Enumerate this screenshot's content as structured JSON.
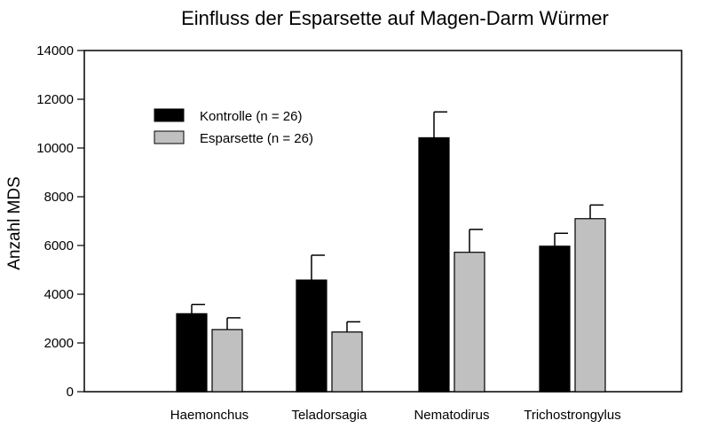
{
  "chart_data": {
    "type": "bar",
    "title": "Einfluss der Esparsette auf Magen-Darm Würmer",
    "xlabel": "",
    "ylabel": "Anzahl MDS",
    "ylim": [
      0,
      14000
    ],
    "yticks": [
      0,
      2000,
      4000,
      6000,
      8000,
      10000,
      12000,
      14000
    ],
    "categories": [
      "Haemonchus",
      "Teladorsagia",
      "Nematodirus",
      "Trichostrongylus"
    ],
    "series": [
      {
        "name": "Kontrolle (n = 26)",
        "color": "#000000",
        "values": [
          3200,
          4580,
          10420,
          5970
        ],
        "errors": [
          380,
          1020,
          1060,
          530
        ]
      },
      {
        "name": "Esparsette (n = 26)",
        "color": "#c0c0c0",
        "values": [
          2550,
          2450,
          5720,
          7100
        ],
        "errors": [
          480,
          420,
          940,
          560
        ]
      }
    ],
    "legend_position": "upper-left",
    "grid": false
  }
}
